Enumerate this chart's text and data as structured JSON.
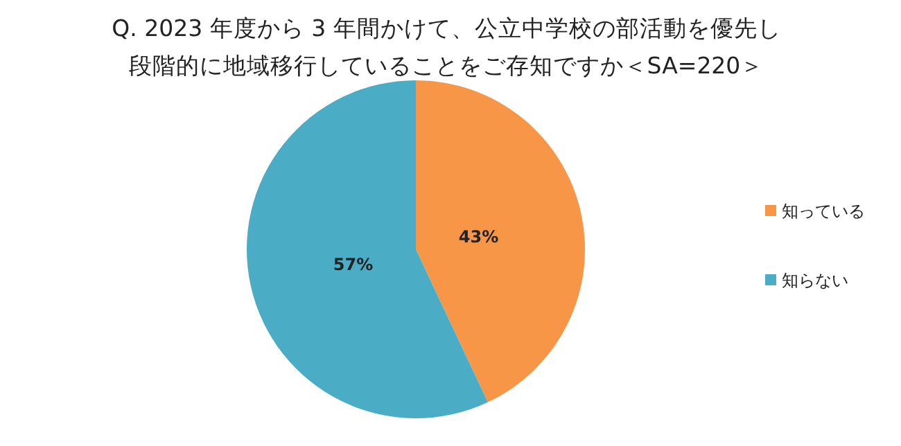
{
  "chart_data": {
    "type": "pie",
    "title": "Q. 2023 年度から 3 年間かけて、公立中学校の部活動を優先し",
    "subtitle": "段階的に地域移行していることをご存知ですか＜SA=220＞",
    "categories": [
      "知っている",
      "知らない"
    ],
    "values": [
      43,
      57
    ],
    "value_labels": [
      "43%",
      "57%"
    ],
    "colors": [
      "#f79646",
      "#4bacc6"
    ],
    "legend": "right"
  }
}
